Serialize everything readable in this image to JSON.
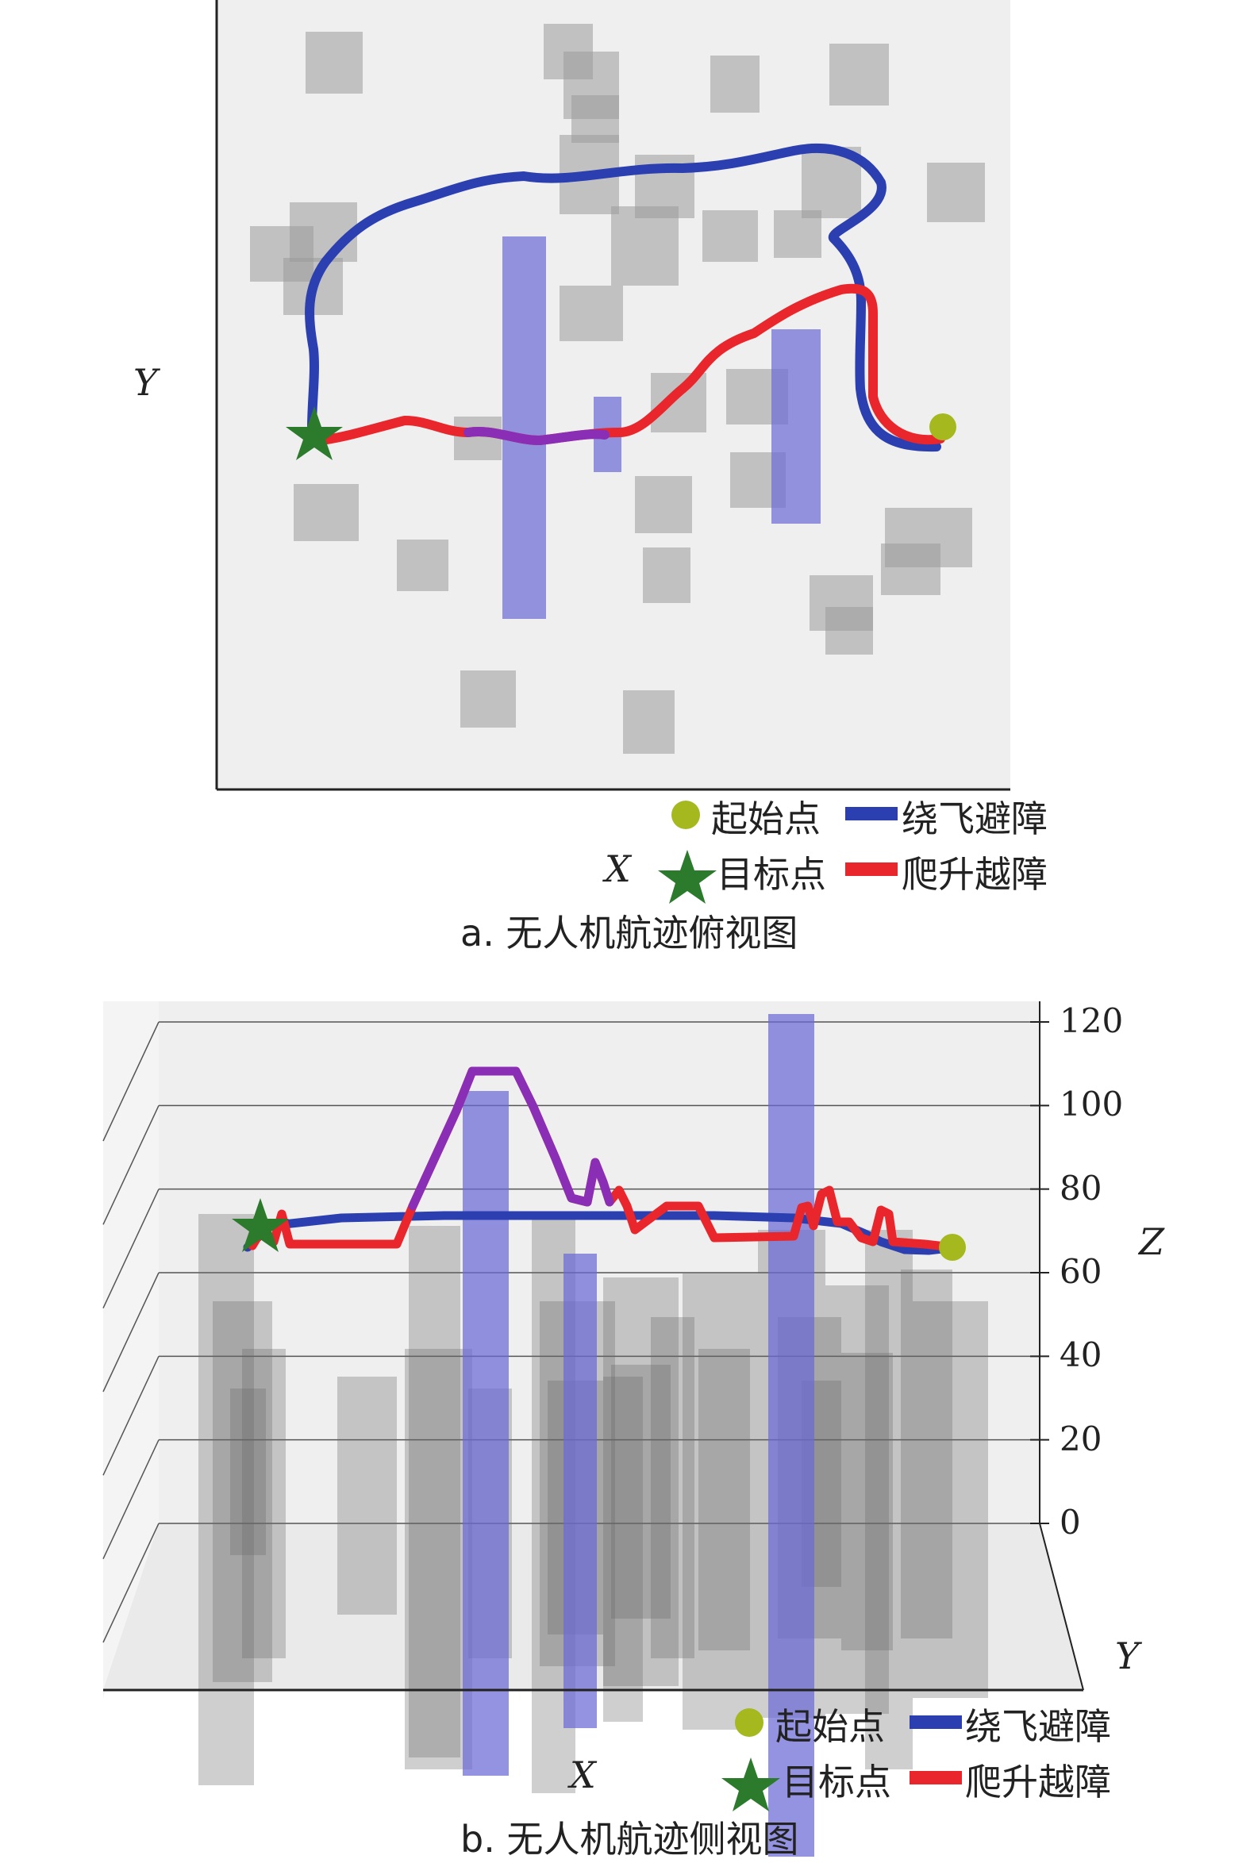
{
  "legend": {
    "start": "起始点",
    "target": "目标点",
    "detour": "绕飞避障",
    "climb": "爬升越障"
  },
  "colors": {
    "detour": "#2b3fb0",
    "climb": "#e8262b",
    "overlap": "#8a2fb5",
    "start": "#a5b81e",
    "target": "#2c7a2c",
    "obstacle": "#9a9a9a",
    "tall_obstacle": "#6a6ad6",
    "background": "#efefef"
  },
  "chart_data": [
    {
      "type": "scatter",
      "view": "top",
      "title": "a. 无人机航迹俯视图",
      "xlabel": "X",
      "ylabel": "Y",
      "series": [
        {
          "name": "绕飞避障",
          "color": "#2b3fb0"
        },
        {
          "name": "爬升越障",
          "color": "#e8262b"
        }
      ],
      "markers": [
        {
          "name": "起始点",
          "shape": "circle",
          "color": "#a5b81e"
        },
        {
          "name": "目标点",
          "shape": "star",
          "color": "#2c7a2c"
        }
      ]
    },
    {
      "type": "line",
      "view": "side",
      "title": "b. 无人机航迹侧视图",
      "xlabel": "X",
      "ylabel": "Y",
      "zlabel": "Z",
      "zlim": [
        0,
        120
      ],
      "zticks": [
        0,
        20,
        40,
        60,
        80,
        100,
        120
      ],
      "series": [
        {
          "name": "绕飞避障",
          "color": "#2b3fb0"
        },
        {
          "name": "爬升越障",
          "color": "#e8262b"
        }
      ],
      "markers": [
        {
          "name": "起始点",
          "shape": "circle",
          "color": "#a5b81e"
        },
        {
          "name": "目标点",
          "shape": "star",
          "color": "#2c7a2c"
        }
      ]
    }
  ]
}
